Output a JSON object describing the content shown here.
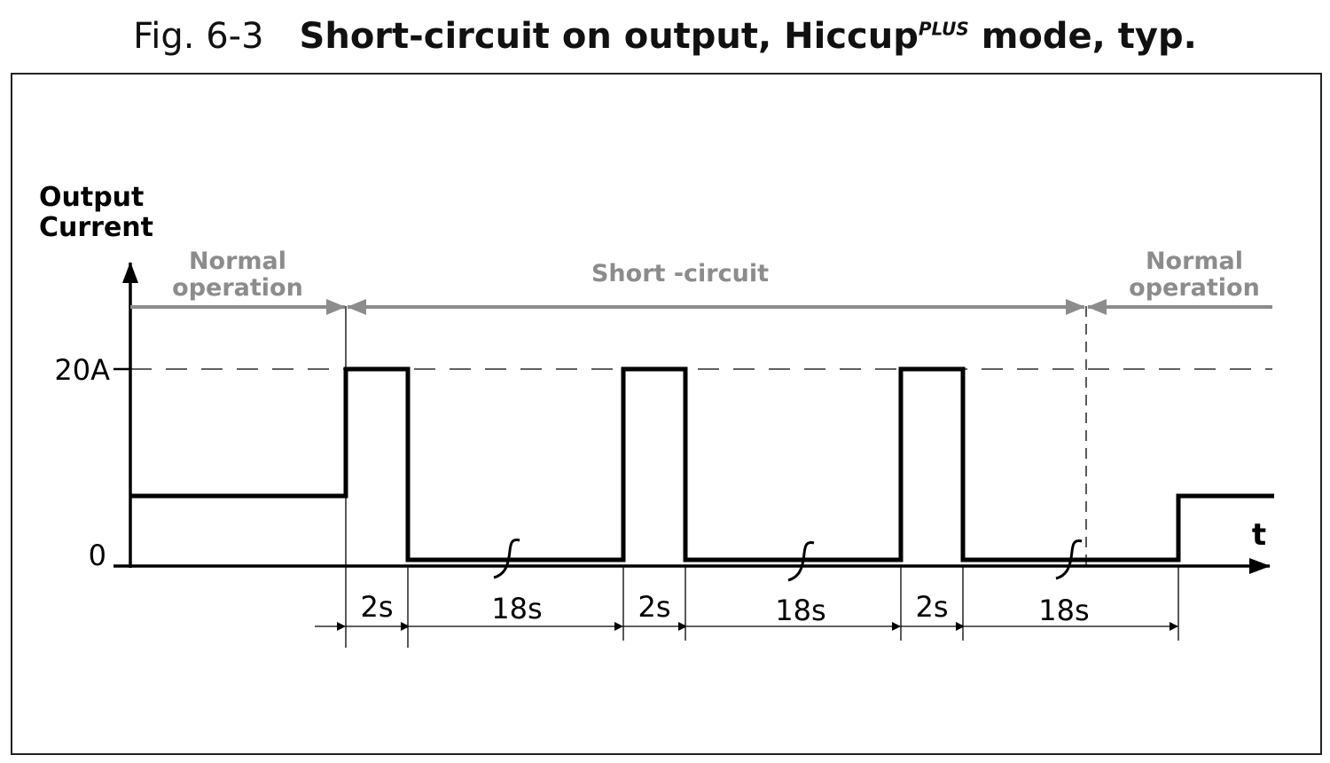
{
  "title": {
    "figure_number": "Fig. 6-3",
    "text_before": "Short-circuit on output, Hiccup",
    "superscript": "PLUS",
    "text_after": " mode, typ."
  },
  "axes": {
    "y_label_line1": "Output",
    "y_label_line2": "Current",
    "x_label": "t",
    "y_tick_high": "20A",
    "y_tick_zero": "0"
  },
  "phases": {
    "normal_left_line1": "Normal",
    "normal_left_line2": "operation",
    "short_circuit": "Short -circuit",
    "normal_right_line1": "Normal",
    "normal_right_line2": "operation"
  },
  "durations": [
    "2s",
    "18s",
    "2s",
    "18s",
    "2s",
    "18s"
  ],
  "colors": {
    "waveform": "#000000",
    "phase_labels": "#8c8c8c"
  }
}
